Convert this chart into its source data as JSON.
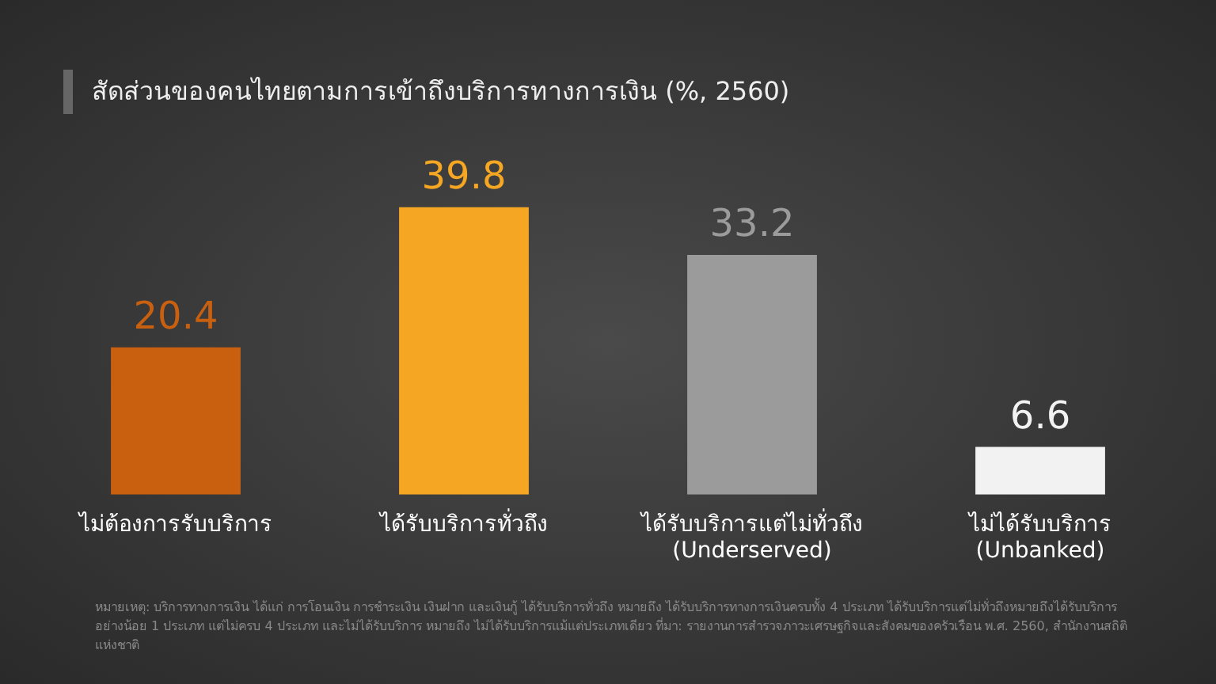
{
  "chart_data": {
    "type": "bar",
    "title": "สัดส่วนของคนไทยตามการเข้าถึงบริการทางการเงิน (%, 2560)",
    "categories": [
      "ไม่ต้องการรับบริการ",
      "ได้รับบริการทั่วถึง",
      "ได้รับบริการแต่ไม่ทั่วถึง\n(Underserved)",
      "ไม่ได้รับบริการ\n(Unbanked)"
    ],
    "values": [
      20.4,
      39.8,
      33.2,
      6.6
    ],
    "colors": [
      "#c8600f",
      "#f5a623",
      "#9b9b9b",
      "#f2f2f2"
    ],
    "data_labels": true,
    "grid": false,
    "legend": false,
    "tick_labels": "x",
    "annotations": [
      "หมายเหตุ: บริการทางการเงิน ได้แก่ การโอนเงิน การชำระเงิน เงินฝาก และเงินกู้ ได้รับบริการทั่วถึง หมายถึง ได้รับบริการทางการเงินครบทั้ง 4 ประเภท ได้รับบริการแต่ไม่ทั่วถึงหมายถึงได้รับบริการอย่างน้อย 1 ประเภท แต่ไม่ครบ 4 ประเภท และไม่ได้รับบริการ หมายถึง ไม่ได้รับบริการแม้แต่ประเภทเดียว ที่มา: รายงานการสำรวจภาวะเศรษฐกิจและสังคมของครัวเรือน พ.ศ. 2560, สำนักงานสถิติแห่งชาติ"
    ]
  }
}
